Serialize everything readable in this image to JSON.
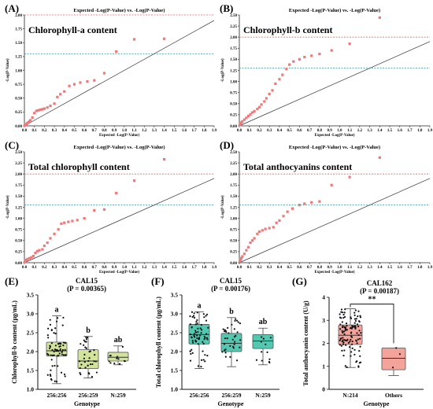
{
  "chart_data": [
    {
      "type": "scatter",
      "panel_label": "(A)",
      "title": "Expected -Log(P-Value) vs. -Log(P-Value)",
      "inner_label": "Chlorophyll-a content",
      "xlabel": "Expected -Log(P-Value)",
      "ylabel": "-Log(P-Value)",
      "xlim": [
        0,
        1.9
      ],
      "ylim": [
        0,
        2.0
      ],
      "xticks": [
        "0.0",
        "0.1",
        "0.2",
        "0.3",
        "0.4",
        "0.5",
        "0.6",
        "0.7",
        "0.8",
        "0.9",
        "1.0",
        "1.1",
        "1.2",
        "1.3",
        "1.4",
        "1.5",
        "1.6",
        "1.7",
        "1.8",
        "1.9"
      ],
      "yticks": [
        "0.00",
        "0.25",
        "0.50",
        "0.75",
        "1.00",
        "1.25",
        "1.50",
        "1.75",
        "2.00"
      ],
      "threshold_red": 2.0,
      "threshold_teal": 1.3,
      "points": [
        [
          0.005,
          0.01
        ],
        [
          0.01,
          0.02
        ],
        [
          0.02,
          0.03
        ],
        [
          0.03,
          0.05
        ],
        [
          0.04,
          0.06
        ],
        [
          0.05,
          0.08
        ],
        [
          0.06,
          0.1
        ],
        [
          0.08,
          0.15
        ],
        [
          0.1,
          0.23
        ],
        [
          0.12,
          0.27
        ],
        [
          0.14,
          0.28
        ],
        [
          0.16,
          0.29
        ],
        [
          0.18,
          0.3
        ],
        [
          0.2,
          0.31
        ],
        [
          0.23,
          0.33
        ],
        [
          0.26,
          0.36
        ],
        [
          0.3,
          0.4
        ],
        [
          0.33,
          0.52
        ],
        [
          0.36,
          0.57
        ],
        [
          0.4,
          0.62
        ],
        [
          0.45,
          0.72
        ],
        [
          0.5,
          0.75
        ],
        [
          0.56,
          0.78
        ],
        [
          0.63,
          0.8
        ],
        [
          0.7,
          0.82
        ],
        [
          0.8,
          0.95
        ],
        [
          0.92,
          1.34
        ],
        [
          1.1,
          1.56
        ],
        [
          1.4,
          1.57
        ]
      ]
    },
    {
      "type": "scatter",
      "panel_label": "(B)",
      "title": "Expected -Log(P-Value) vs. -Log(P-Value)",
      "inner_label": "Chlorophyll-b content",
      "xlabel": "Expected -Log(P-Value)",
      "ylabel": "-Log(P-Value)",
      "xlim": [
        0,
        1.9
      ],
      "ylim": [
        0,
        2.5
      ],
      "xticks": [
        "0.0",
        "0.1",
        "0.2",
        "0.3",
        "0.4",
        "0.5",
        "0.6",
        "0.7",
        "0.8",
        "0.9",
        "1.0",
        "1.1",
        "1.2",
        "1.3",
        "1.4",
        "1.5",
        "1.6",
        "1.7",
        "1.8",
        "1.9"
      ],
      "yticks": [
        "0.00",
        "0.25",
        "0.50",
        "0.75",
        "1.00",
        "1.25",
        "1.50",
        "1.75",
        "2.00",
        "2.25",
        "2.50"
      ],
      "threshold_red": 2.0,
      "threshold_teal": 1.3,
      "points": [
        [
          0.005,
          0.02
        ],
        [
          0.01,
          0.04
        ],
        [
          0.02,
          0.07
        ],
        [
          0.03,
          0.1
        ],
        [
          0.05,
          0.14
        ],
        [
          0.07,
          0.18
        ],
        [
          0.09,
          0.22
        ],
        [
          0.11,
          0.26
        ],
        [
          0.13,
          0.3
        ],
        [
          0.15,
          0.33
        ],
        [
          0.18,
          0.38
        ],
        [
          0.2,
          0.42
        ],
        [
          0.22,
          0.48
        ],
        [
          0.25,
          0.55
        ],
        [
          0.27,
          0.62
        ],
        [
          0.3,
          0.72
        ],
        [
          0.33,
          0.8
        ],
        [
          0.36,
          0.95
        ],
        [
          0.4,
          1.05
        ],
        [
          0.43,
          1.15
        ],
        [
          0.47,
          1.28
        ],
        [
          0.5,
          1.38
        ],
        [
          0.54,
          1.45
        ],
        [
          0.6,
          1.5
        ],
        [
          0.65,
          1.55
        ],
        [
          0.72,
          1.58
        ],
        [
          0.8,
          1.62
        ],
        [
          0.92,
          1.7
        ],
        [
          1.1,
          1.85
        ],
        [
          1.4,
          2.44
        ]
      ]
    },
    {
      "type": "scatter",
      "panel_label": "(C)",
      "title": "Expected -Log(P-Value) vs. -Log(P-Value)",
      "inner_label": "Total chlorophyll content",
      "xlabel": "Expected -Log(P-Value)",
      "ylabel": "-Log(P-Value)",
      "xlim": [
        0,
        1.9
      ],
      "ylim": [
        0,
        2.5
      ],
      "xticks": [
        "0.0",
        "0.1",
        "0.2",
        "0.3",
        "0.4",
        "0.5",
        "0.6",
        "0.7",
        "0.8",
        "0.9",
        "1.0",
        "1.1",
        "1.2",
        "1.3",
        "1.4",
        "1.5",
        "1.6",
        "1.7",
        "1.8",
        "1.9"
      ],
      "yticks": [
        "0.00",
        "0.25",
        "0.50",
        "0.75",
        "1.00",
        "1.25",
        "1.50",
        "1.75",
        "2.00",
        "2.25",
        "2.50"
      ],
      "threshold_red": 2.0,
      "threshold_teal": 1.3,
      "points": [
        [
          0.005,
          0.02
        ],
        [
          0.01,
          0.04
        ],
        [
          0.02,
          0.06
        ],
        [
          0.03,
          0.08
        ],
        [
          0.05,
          0.1
        ],
        [
          0.07,
          0.12
        ],
        [
          0.09,
          0.15
        ],
        [
          0.11,
          0.22
        ],
        [
          0.13,
          0.26
        ],
        [
          0.15,
          0.28
        ],
        [
          0.18,
          0.3
        ],
        [
          0.2,
          0.38
        ],
        [
          0.23,
          0.45
        ],
        [
          0.26,
          0.55
        ],
        [
          0.3,
          0.65
        ],
        [
          0.34,
          0.75
        ],
        [
          0.37,
          0.88
        ],
        [
          0.4,
          0.9
        ],
        [
          0.44,
          0.92
        ],
        [
          0.48,
          0.94
        ],
        [
          0.53,
          0.96
        ],
        [
          0.6,
          1.0
        ],
        [
          0.7,
          1.18
        ],
        [
          0.8,
          1.2
        ],
        [
          0.92,
          1.57
        ],
        [
          1.1,
          1.85
        ],
        [
          1.4,
          2.33
        ]
      ]
    },
    {
      "type": "scatter",
      "panel_label": "(D)",
      "title": "Expected -Log(P-Value) vs. -Log(P-Value)",
      "inner_label": "Total anthocyanins content",
      "xlabel": "Expected -Log(P-Value)",
      "ylabel": "-Log(P-Value)",
      "xlim": [
        0,
        1.9
      ],
      "ylim": [
        0,
        2.5
      ],
      "xticks": [
        "0.0",
        "0.1",
        "0.2",
        "0.3",
        "0.4",
        "0.5",
        "0.6",
        "0.7",
        "0.8",
        "0.9",
        "1.0",
        "1.1",
        "1.2",
        "1.3",
        "1.4",
        "1.5",
        "1.6",
        "1.7",
        "1.8",
        "1.9"
      ],
      "yticks": [
        "0.00",
        "0.25",
        "0.50",
        "0.75",
        "1.00",
        "1.25",
        "1.50",
        "1.75",
        "2.00",
        "2.25",
        "2.50"
      ],
      "threshold_red": 2.0,
      "threshold_teal": 1.3,
      "points": [
        [
          0.005,
          0.03
        ],
        [
          0.01,
          0.06
        ],
        [
          0.02,
          0.1
        ],
        [
          0.03,
          0.14
        ],
        [
          0.05,
          0.2
        ],
        [
          0.07,
          0.28
        ],
        [
          0.09,
          0.35
        ],
        [
          0.11,
          0.45
        ],
        [
          0.13,
          0.5
        ],
        [
          0.15,
          0.55
        ],
        [
          0.18,
          0.65
        ],
        [
          0.2,
          0.7
        ],
        [
          0.23,
          0.73
        ],
        [
          0.26,
          0.76
        ],
        [
          0.3,
          0.78
        ],
        [
          0.34,
          0.8
        ],
        [
          0.37,
          0.9
        ],
        [
          0.4,
          0.95
        ],
        [
          0.44,
          1.05
        ],
        [
          0.48,
          1.15
        ],
        [
          0.53,
          1.22
        ],
        [
          0.6,
          1.3
        ],
        [
          0.65,
          1.33
        ],
        [
          0.72,
          1.36
        ],
        [
          0.8,
          1.38
        ],
        [
          0.92,
          1.75
        ],
        [
          1.1,
          1.93
        ],
        [
          1.4,
          2.37
        ]
      ]
    },
    {
      "type": "box",
      "panel_label": "(E)",
      "marker": "CAL15",
      "p_label": "(P = 0.00365)",
      "ylabel": "Chlorophyll-b content (μg/mL)",
      "xlabel": "Genotype",
      "ylim": [
        1.0,
        3.5
      ],
      "yticks": [
        "1.0",
        "1.5",
        "2.0",
        "2.5",
        "3.0",
        "3.5"
      ],
      "color": "#d2e39b",
      "categories": [
        "256:256",
        "256:259",
        "N:259"
      ],
      "boxes": [
        {
          "min": 1.15,
          "q1": 1.88,
          "median": 2.02,
          "q3": 2.25,
          "max": 2.95,
          "letter": "a",
          "n": 70
        },
        {
          "min": 1.3,
          "q1": 1.55,
          "median": 1.75,
          "q3": 2.05,
          "max": 2.4,
          "letter": "b",
          "n": 35
        },
        {
          "min": 1.65,
          "q1": 1.75,
          "median": 1.85,
          "q3": 1.98,
          "max": 2.15,
          "letter": "ab",
          "n": 12
        }
      ]
    },
    {
      "type": "box",
      "panel_label": "(F)",
      "marker": "CAL15",
      "p_label": "(P = 0.00176)",
      "ylabel": "Total chlorophyll content (μg/mL)",
      "xlabel": "Genotype",
      "ylim": [
        1.0,
        3.5
      ],
      "yticks": [
        "1.0",
        "1.5",
        "2.0",
        "2.5",
        "3.0",
        "3.5"
      ],
      "color": "#52c8b0",
      "categories": [
        "256:256",
        "256:259",
        "N:259"
      ],
      "boxes": [
        {
          "min": 1.55,
          "q1": 2.2,
          "median": 2.45,
          "q3": 2.72,
          "max": 3.05,
          "letter": "a",
          "n": 70
        },
        {
          "min": 1.6,
          "q1": 2.0,
          "median": 2.22,
          "q3": 2.48,
          "max": 2.9,
          "letter": "b",
          "n": 35
        },
        {
          "min": 1.65,
          "q1": 2.08,
          "median": 2.28,
          "q3": 2.45,
          "max": 2.62,
          "letter": "ab",
          "n": 12
        }
      ]
    },
    {
      "type": "box",
      "panel_label": "(G)",
      "marker": "CAL162",
      "p_label": "(P = 0.00187)",
      "ylabel": "Total anthocyanin content (U/g)",
      "xlabel": "Genotype",
      "ylim": [
        0,
        4
      ],
      "yticks": [
        "0",
        "1",
        "2",
        "3",
        "4"
      ],
      "color": "#f4a39a",
      "categories": [
        "N:214",
        "Others"
      ],
      "boxes": [
        {
          "min": 0.95,
          "q1": 1.95,
          "median": 2.35,
          "q3": 2.8,
          "max": 3.5,
          "letter": "",
          "n": 110
        },
        {
          "min": 0.6,
          "q1": 0.85,
          "median": 1.35,
          "q3": 1.8,
          "max": 1.8,
          "letter": "",
          "n": 3
        }
      ],
      "significance": "**"
    }
  ]
}
